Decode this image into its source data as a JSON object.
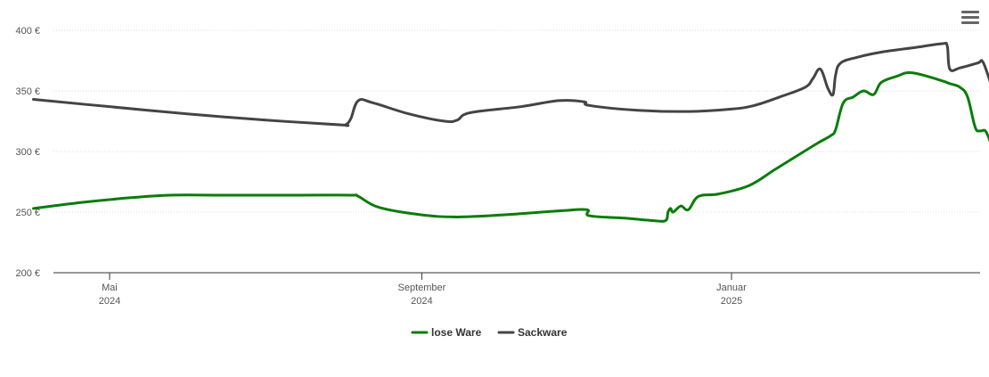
{
  "chart_data": {
    "type": "line",
    "title": "",
    "xlabel": "",
    "ylabel": "",
    "ylim": [
      200,
      400
    ],
    "y_ticks": [
      200,
      250,
      300,
      350,
      400
    ],
    "y_tick_labels": [
      "200 €",
      "250 €",
      "300 €",
      "350 €",
      "400 €"
    ],
    "grid": "horizontal dotted",
    "legend": "bottom-center",
    "x_range": [
      "2024-04-01",
      "2025-04-01"
    ],
    "x_ticks": [
      {
        "date": "2024-05-01",
        "month": "Mai",
        "year": "2024"
      },
      {
        "date": "2024-09-01",
        "month": "September",
        "year": "2024"
      },
      {
        "date": "2025-01-01",
        "month": "Januar",
        "year": "2025"
      }
    ],
    "series": [
      {
        "name": "lose Ware",
        "color": "#0a7c0a",
        "points": [
          [
            "2024-04-01",
            253
          ],
          [
            "2024-04-20",
            258
          ],
          [
            "2024-05-10",
            262
          ],
          [
            "2024-05-25",
            264
          ],
          [
            "2024-06-15",
            264
          ],
          [
            "2024-07-15",
            264
          ],
          [
            "2024-08-04",
            264
          ],
          [
            "2024-08-07",
            263
          ],
          [
            "2024-08-15",
            254
          ],
          [
            "2024-08-31",
            248
          ],
          [
            "2024-09-15",
            246
          ],
          [
            "2024-10-05",
            248
          ],
          [
            "2024-10-25",
            251
          ],
          [
            "2024-11-05",
            252
          ],
          [
            "2024-11-06",
            247
          ],
          [
            "2024-11-20",
            245
          ],
          [
            "2024-12-01",
            243
          ],
          [
            "2024-12-06",
            243
          ],
          [
            "2024-12-07",
            250
          ],
          [
            "2024-12-08",
            253
          ],
          [
            "2024-12-09",
            250
          ],
          [
            "2024-12-12",
            255
          ],
          [
            "2024-12-15",
            252
          ],
          [
            "2024-12-19",
            263
          ],
          [
            "2024-12-27",
            265
          ],
          [
            "2025-01-08",
            272
          ],
          [
            "2025-01-18",
            285
          ],
          [
            "2025-01-28",
            298
          ],
          [
            "2025-02-04",
            307
          ],
          [
            "2025-02-09",
            313
          ],
          [
            "2025-02-11",
            318
          ],
          [
            "2025-02-14",
            340
          ],
          [
            "2025-02-18",
            345
          ],
          [
            "2025-02-22",
            350
          ],
          [
            "2025-02-26",
            347
          ],
          [
            "2025-03-01",
            357
          ],
          [
            "2025-03-07",
            362
          ],
          [
            "2025-03-13",
            365
          ],
          [
            "2025-03-24",
            359
          ],
          [
            "2025-03-28",
            356
          ],
          [
            "2025-04-01",
            353
          ],
          [
            "2025-04-04",
            345
          ],
          [
            "2025-04-07",
            320
          ],
          [
            "2025-04-09",
            317
          ],
          [
            "2025-04-11",
            317
          ],
          [
            "2025-04-13",
            308
          ]
        ]
      },
      {
        "name": "Sackware",
        "color": "#444444",
        "points": [
          [
            "2024-04-01",
            343
          ],
          [
            "2024-05-01",
            337
          ],
          [
            "2024-06-01",
            331
          ],
          [
            "2024-07-01",
            326
          ],
          [
            "2024-07-31",
            322
          ],
          [
            "2024-08-02",
            322
          ],
          [
            "2024-08-04",
            327
          ],
          [
            "2024-08-07",
            342
          ],
          [
            "2024-08-13",
            340
          ],
          [
            "2024-08-27",
            331
          ],
          [
            "2024-09-10",
            325
          ],
          [
            "2024-09-15",
            326
          ],
          [
            "2024-09-20",
            332
          ],
          [
            "2024-10-10",
            337
          ],
          [
            "2024-10-25",
            342
          ],
          [
            "2024-11-04",
            341
          ],
          [
            "2024-11-06",
            338
          ],
          [
            "2024-11-25",
            334
          ],
          [
            "2024-12-15",
            333
          ],
          [
            "2025-01-01",
            335
          ],
          [
            "2025-01-10",
            338
          ],
          [
            "2025-01-20",
            345
          ],
          [
            "2025-01-30",
            353
          ],
          [
            "2025-02-02",
            360
          ],
          [
            "2025-02-05",
            368
          ],
          [
            "2025-02-08",
            352
          ],
          [
            "2025-02-10",
            347
          ],
          [
            "2025-02-11",
            363
          ],
          [
            "2025-02-13",
            373
          ],
          [
            "2025-02-20",
            378
          ],
          [
            "2025-03-01",
            382
          ],
          [
            "2025-03-15",
            386
          ],
          [
            "2025-03-25",
            389
          ],
          [
            "2025-03-27",
            387
          ],
          [
            "2025-03-28",
            368
          ],
          [
            "2025-04-01",
            369
          ],
          [
            "2025-04-08",
            373
          ],
          [
            "2025-04-10",
            374
          ],
          [
            "2025-04-13",
            357
          ]
        ]
      }
    ]
  },
  "menu": {
    "icon": "hamburger-menu-icon"
  }
}
